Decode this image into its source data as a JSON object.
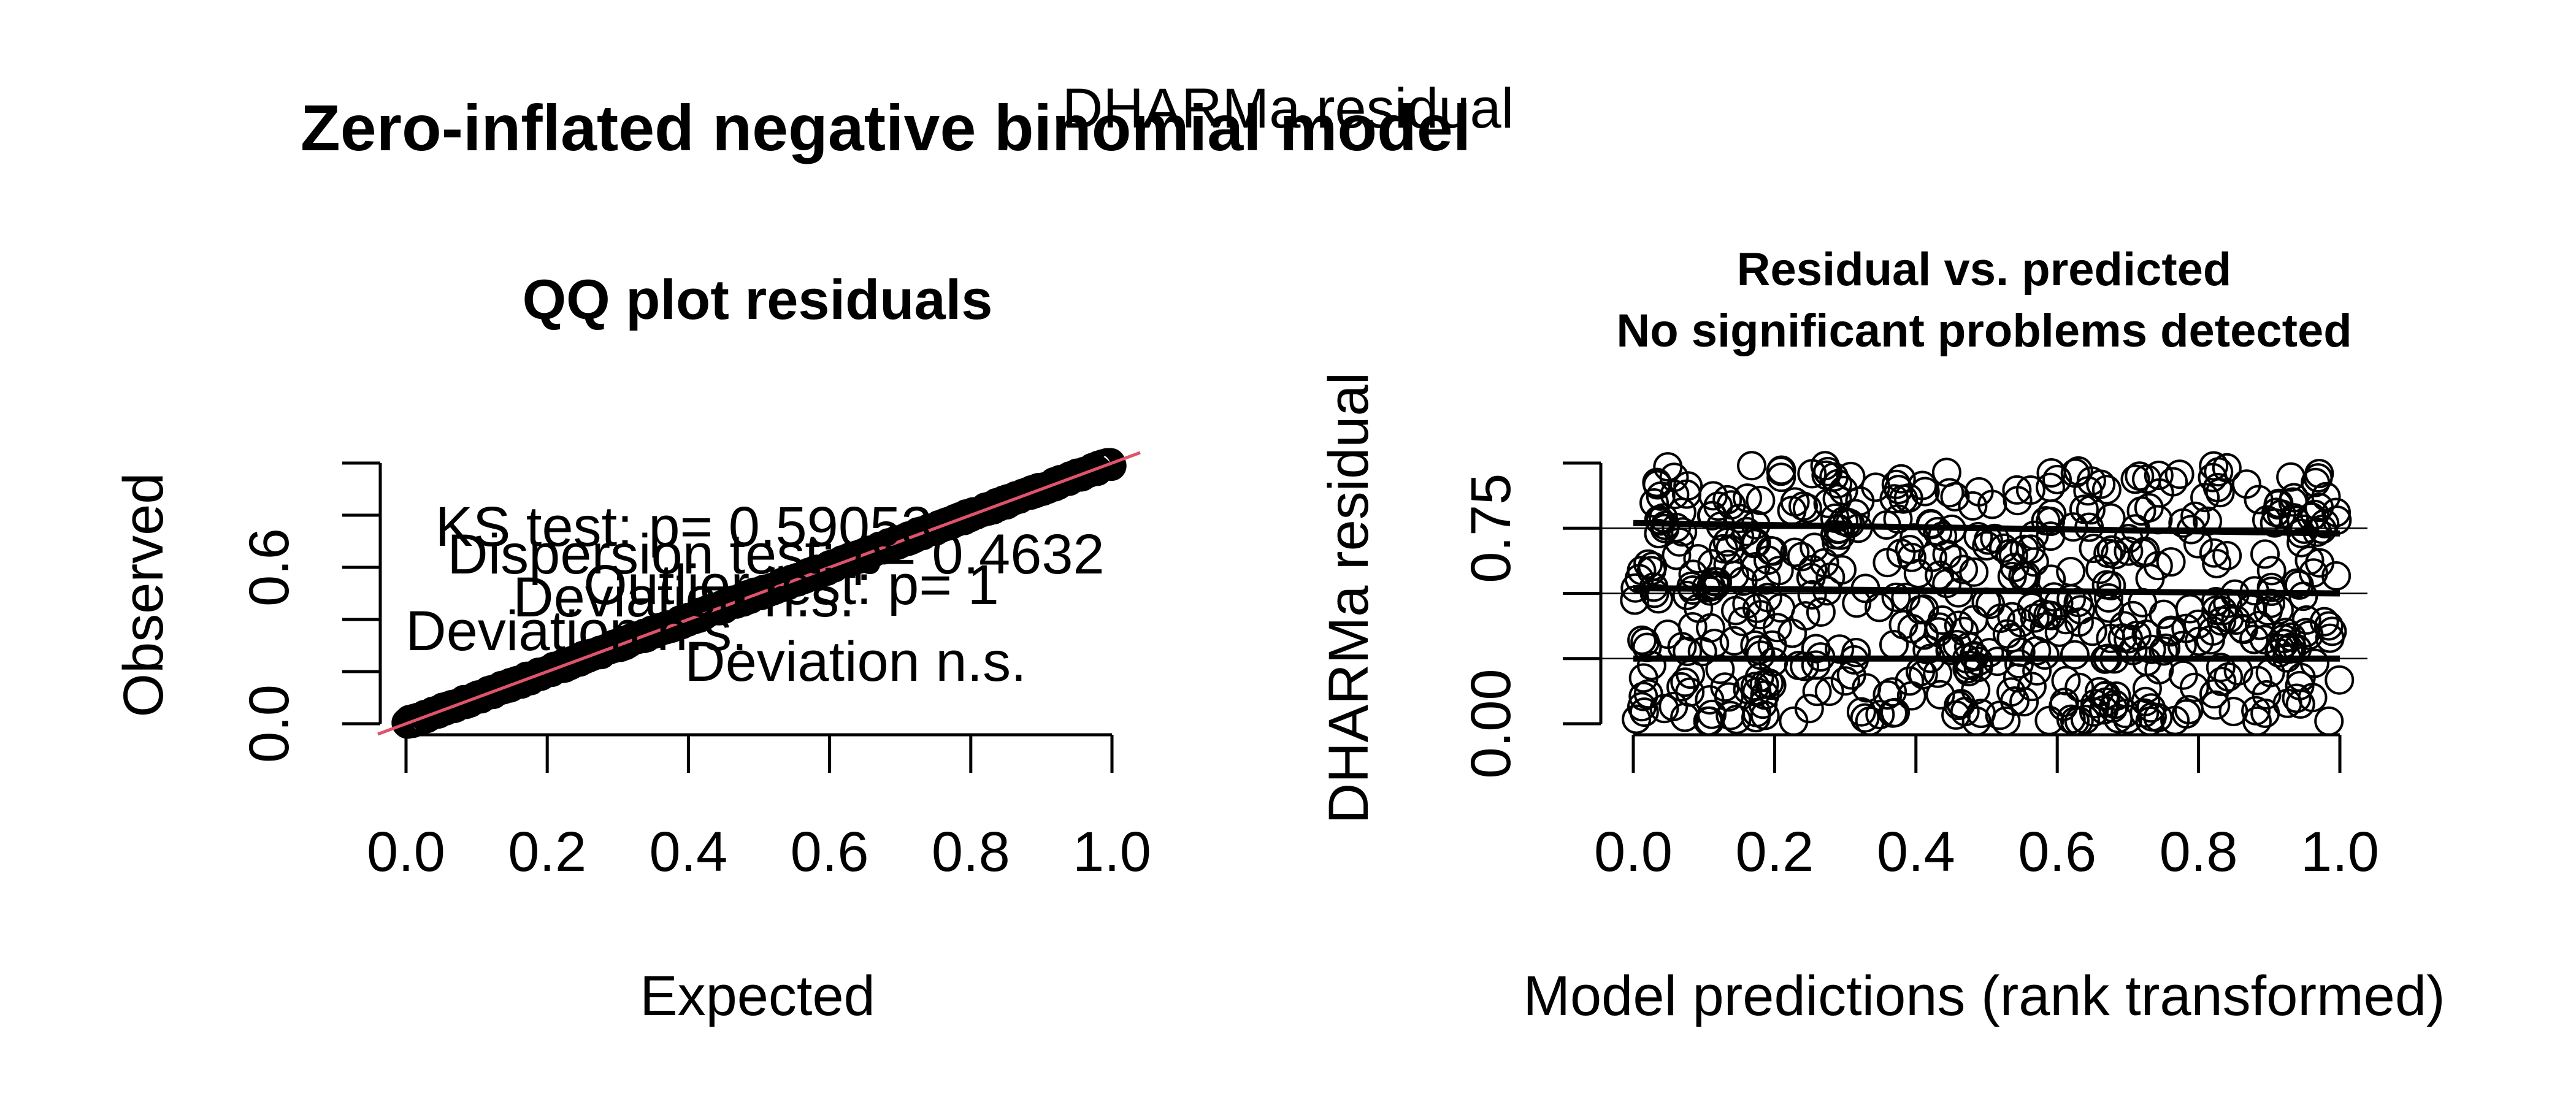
{
  "figure": {
    "main_title": "Zero-inflated negative binomial model",
    "overlay_title": "DHARMa residual"
  },
  "chart_data": [
    {
      "type": "scatter",
      "title": "QQ plot residuals",
      "xlabel": "Expected",
      "ylabel": "Observed",
      "xlim": [
        0,
        1
      ],
      "ylim": [
        0,
        1
      ],
      "x_ticks": [
        "0.0",
        "0.2",
        "0.4",
        "0.6",
        "0.8",
        "1.0"
      ],
      "y_ticks": [
        "0.0",
        "0.6"
      ],
      "y_tick_values": [
        0,
        0.2,
        0.4,
        0.6,
        0.8,
        1.0
      ],
      "reference_line_color": "#DF536B",
      "point_color": "#000000",
      "annotations": {
        "ks_test": "KS test: p= 0.59053",
        "ks_deviation": "Deviation  n.s.",
        "dispersion_test": "Dispersion test: p= 0.4632",
        "dispersion_deviation": "Deviation  n.s.",
        "outlier_test": "Outlier test: p= 1",
        "outlier_deviation": "Deviation  n.s."
      },
      "grid": false
    },
    {
      "type": "scatter",
      "title": "Residual vs. predicted",
      "subtitle": "No significant problems detected",
      "xlabel": "Model predictions (rank transformed)",
      "ylabel": "DHARMa residual",
      "xlim": [
        0,
        1
      ],
      "ylim": [
        0,
        1
      ],
      "x_ticks": [
        "0.0",
        "0.2",
        "0.4",
        "0.6",
        "0.8",
        "1.0"
      ],
      "y_ticks": [
        "0.00",
        "0.75"
      ],
      "y_tick_values": [
        0,
        0.25,
        0.5,
        0.75,
        1.0
      ],
      "quantile_lines": [
        {
          "quantile": 0.25,
          "y_start": 0.25,
          "y_end": 0.25
        },
        {
          "quantile": 0.5,
          "y_start": 0.52,
          "y_end": 0.5
        },
        {
          "quantile": 0.75,
          "y_start": 0.77,
          "y_end": 0.73
        }
      ],
      "reference_line_values": [
        0.25,
        0.5,
        0.75
      ],
      "point_count": 550,
      "grid": false
    }
  ]
}
